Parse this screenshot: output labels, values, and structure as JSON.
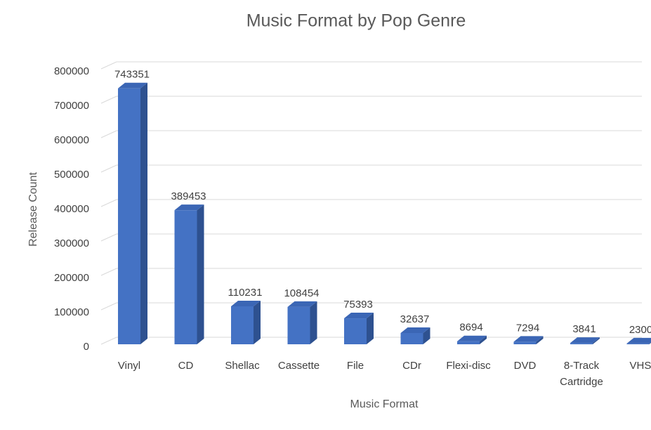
{
  "chart_data": {
    "type": "bar3d",
    "title": "Music Format by Pop Genre",
    "x_label": "Music Format",
    "y_label": "Release Count",
    "categories": [
      "Vinyl",
      "CD",
      "Shellac",
      "Cassette",
      "File",
      "CDr",
      "Flexi-disc",
      "DVD",
      "8-Track Cartridge",
      "VHS"
    ],
    "values": [
      743351,
      389453,
      110231,
      108454,
      75393,
      32637,
      8694,
      7294,
      3841,
      2300
    ],
    "color": "#4472c4",
    "ylim": [
      0,
      800000
    ],
    "yticks": [
      0,
      100000,
      200000,
      300000,
      400000,
      500000,
      600000,
      700000,
      800000
    ],
    "grid": true
  }
}
